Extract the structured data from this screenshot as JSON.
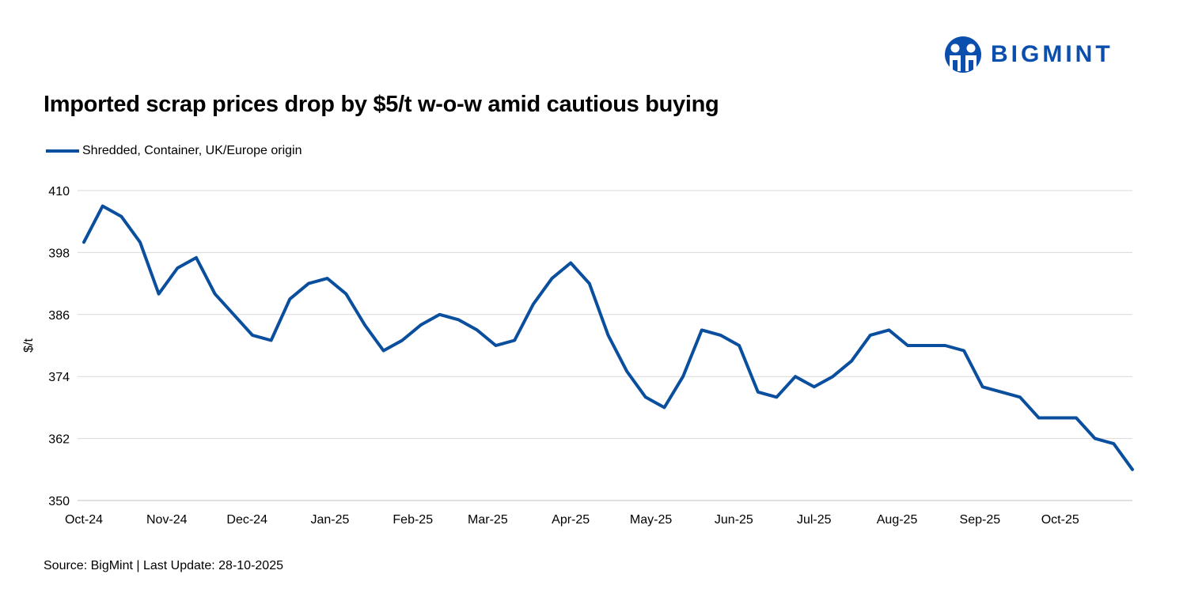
{
  "logo": {
    "text": "BIGMINT",
    "color": "#0b4fae"
  },
  "footer": {
    "source": "Source: BigMint | Last Update: 28-10-2025"
  },
  "chart_data": {
    "type": "line",
    "title": "Imported scrap prices drop by $5/t w-o-w amid cautious buying",
    "ylabel": "$/t",
    "xlabel": "",
    "ylim": [
      350,
      410
    ],
    "yticks": [
      350,
      362,
      374,
      386,
      398,
      410
    ],
    "grid": true,
    "legend_position": "top-left",
    "xtick_labels": [
      {
        "date": "2024-10-01",
        "label": "Oct-24"
      },
      {
        "date": "2024-11-01",
        "label": "Nov-24"
      },
      {
        "date": "2024-12-01",
        "label": "Dec-24"
      },
      {
        "date": "2025-01-01",
        "label": "Jan-25"
      },
      {
        "date": "2025-02-01",
        "label": "Feb-25"
      },
      {
        "date": "2025-03-01",
        "label": "Mar-25"
      },
      {
        "date": "2025-04-01",
        "label": "Apr-25"
      },
      {
        "date": "2025-05-01",
        "label": "May-25"
      },
      {
        "date": "2025-06-01",
        "label": "Jun-25"
      },
      {
        "date": "2025-07-01",
        "label": "Jul-25"
      },
      {
        "date": "2025-08-01",
        "label": "Aug-25"
      },
      {
        "date": "2025-09-01",
        "label": "Sep-25"
      },
      {
        "date": "2025-10-01",
        "label": "Oct-25"
      }
    ],
    "x": [
      "2024-10-01",
      "2024-10-08",
      "2024-10-15",
      "2024-10-22",
      "2024-10-29",
      "2024-11-05",
      "2024-11-12",
      "2024-11-19",
      "2024-11-26",
      "2024-12-03",
      "2024-12-10",
      "2024-12-17",
      "2024-12-24",
      "2024-12-31",
      "2025-01-07",
      "2025-01-14",
      "2025-01-21",
      "2025-01-28",
      "2025-02-04",
      "2025-02-11",
      "2025-02-18",
      "2025-02-25",
      "2025-03-04",
      "2025-03-11",
      "2025-03-18",
      "2025-03-25",
      "2025-04-01",
      "2025-04-08",
      "2025-04-15",
      "2025-04-22",
      "2025-04-29",
      "2025-05-06",
      "2025-05-13",
      "2025-05-20",
      "2025-05-27",
      "2025-06-03",
      "2025-06-10",
      "2025-06-17",
      "2025-06-24",
      "2025-07-01",
      "2025-07-08",
      "2025-07-15",
      "2025-07-22",
      "2025-07-29",
      "2025-08-05",
      "2025-08-12",
      "2025-08-19",
      "2025-08-26",
      "2025-09-02",
      "2025-09-09",
      "2025-09-16",
      "2025-09-23",
      "2025-09-30",
      "2025-10-07",
      "2025-10-14",
      "2025-10-21",
      "2025-10-28"
    ],
    "series": [
      {
        "name": "Shredded, Container, UK/Europe origin",
        "color": "#0a4f9e",
        "values": [
          400,
          407,
          405,
          400,
          390,
          395,
          397,
          390,
          386,
          382,
          381,
          389,
          392,
          393,
          390,
          384,
          379,
          381,
          384,
          386,
          385,
          383,
          380,
          381,
          388,
          393,
          396,
          392,
          382,
          375,
          370,
          368,
          374,
          383,
          382,
          380,
          371,
          370,
          374,
          372,
          374,
          377,
          382,
          383,
          380,
          380,
          380,
          379,
          372,
          371,
          370,
          366,
          366,
          366,
          362,
          361,
          356
        ]
      }
    ]
  }
}
